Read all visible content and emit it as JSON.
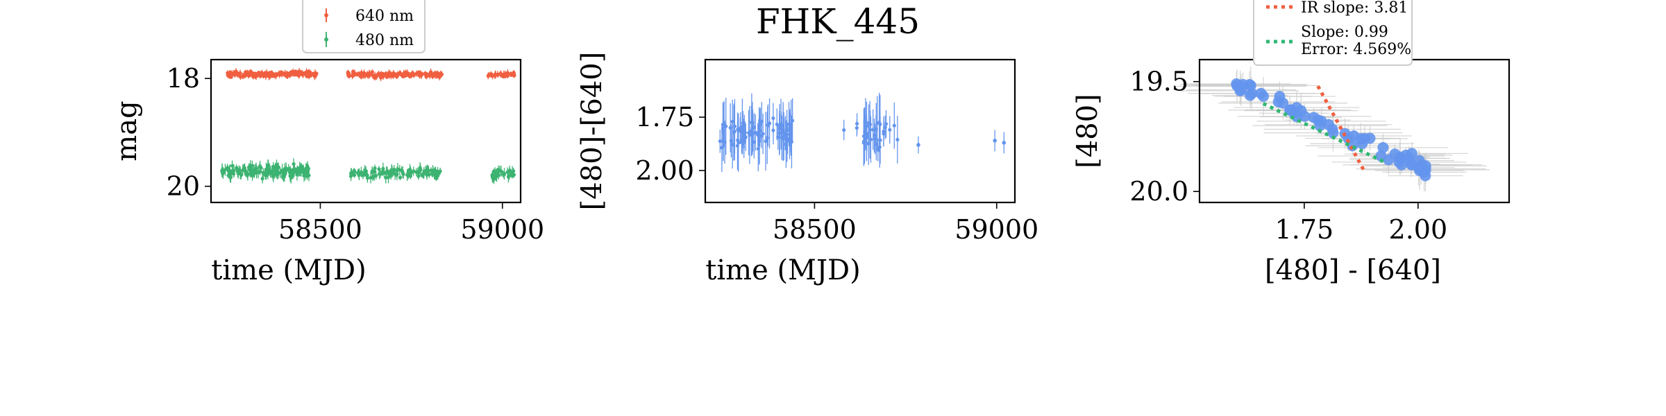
{
  "figure": {
    "title": "FHK_445"
  },
  "colors": {
    "nm640": "#f05f40",
    "nm480": "#3cb371",
    "color_points": "#6495ed",
    "error_gray": "#c8c8c8",
    "ir_slope_line": "#f05f40",
    "fit_line": "#2eb872"
  },
  "chart_data": [
    {
      "type": "scatter",
      "name": "lightcurve",
      "xlabel": "time (MJD)",
      "ylabel": "mag",
      "xlim": [
        58200,
        59050
      ],
      "ylim": [
        20.3,
        17.65
      ],
      "y_inverted": true,
      "xticks": [
        58500,
        59000
      ],
      "yticks": [
        18,
        20
      ],
      "xtick_labels": [
        "58500",
        "59000"
      ],
      "ytick_labels": [
        "18",
        "20"
      ],
      "legend_position": "top-center",
      "series": [
        {
          "name": "640 nm",
          "color_key": "nm640",
          "segments": [
            {
              "x_range": [
                58245,
                58490
              ],
              "y_mean": 17.92,
              "y_jitter": 0.07,
              "err": 0.05,
              "count": 170
            },
            {
              "x_range": [
                58575,
                58835
              ],
              "y_mean": 17.93,
              "y_jitter": 0.07,
              "err": 0.05,
              "count": 140
            },
            {
              "x_range": [
                58960,
                59035
              ],
              "y_mean": 17.93,
              "y_jitter": 0.05,
              "err": 0.05,
              "count": 40
            }
          ]
        },
        {
          "name": "480 nm",
          "color_key": "nm480",
          "segments": [
            {
              "x_range": [
                58230,
                58470
              ],
              "y_mean": 19.72,
              "y_jitter": 0.16,
              "err": 0.09,
              "count": 160
            },
            {
              "x_range": [
                58580,
                58830
              ],
              "y_mean": 19.75,
              "y_jitter": 0.13,
              "err": 0.08,
              "count": 110
            },
            {
              "x_range": [
                58960,
                59035
              ],
              "y_mean": 19.78,
              "y_jitter": 0.14,
              "err": 0.08,
              "count": 30
            }
          ]
        }
      ]
    },
    {
      "type": "scatter",
      "name": "color_curve",
      "title": "FHK_445",
      "xlabel": "time (MJD)",
      "ylabel": "[480]-[640]",
      "xlim": [
        58200,
        59050
      ],
      "ylim": [
        2.15,
        1.48
      ],
      "y_inverted": true,
      "xticks": [
        58500,
        59000
      ],
      "yticks": [
        1.75,
        2.0
      ],
      "xtick_labels": [
        "58500",
        "59000"
      ],
      "ytick_labels": [
        "1.75",
        "2.00"
      ],
      "series": [
        {
          "name": "[480]-[640]",
          "color_key": "color_points",
          "segments": [
            {
              "x_range": [
                58240,
                58440
              ],
              "y_mean": 1.82,
              "y_jitter": 0.09,
              "err": 0.1,
              "count": 90
            },
            {
              "x_range": [
                58570,
                58620
              ],
              "y_mean": 1.8,
              "y_jitter": 0.04,
              "err": 0.06,
              "count": 3
            },
            {
              "x_range": [
                58630,
                58730
              ],
              "y_mean": 1.83,
              "y_jitter": 0.09,
              "err": 0.1,
              "count": 35
            }
          ],
          "points": [
            {
              "x": 58785,
              "y": 1.88,
              "err": 0.04
            },
            {
              "x": 58995,
              "y": 1.86,
              "err": 0.05
            },
            {
              "x": 59020,
              "y": 1.87,
              "err": 0.05
            }
          ]
        }
      ]
    },
    {
      "type": "scatter",
      "name": "color_magnitude",
      "xlabel": "[480] - [640]",
      "ylabel": "[480]",
      "xlim": [
        1.52,
        2.2
      ],
      "ylim": [
        20.05,
        19.4
      ],
      "y_inverted": true,
      "xticks": [
        1.75,
        2.0
      ],
      "yticks": [
        19.5,
        20.0
      ],
      "xtick_labels": [
        "1.75",
        "2.00"
      ],
      "ytick_labels": [
        "19.5",
        "20.0"
      ],
      "legend_position": "top-center",
      "series": [
        {
          "name": "data",
          "color_key": "color_points",
          "trend": {
            "x_range": [
              1.6,
              2.02
            ],
            "y_start": 19.52,
            "y_end": 19.9,
            "y_jitter": 0.05,
            "count": 60
          }
        },
        {
          "name": "IR slope: 3.81",
          "color_key": "ir_slope_line",
          "line": {
            "x": [
              1.78,
              1.88
            ],
            "y": [
              19.52,
              19.9
            ]
          }
        },
        {
          "name": "Slope: 0.99\nError: 4.569%",
          "color_key": "fit_line",
          "line": {
            "x": [
              1.66,
              1.93
            ],
            "y": [
              19.6,
              19.87
            ]
          }
        }
      ],
      "legend": [
        {
          "label": "IR slope: 3.81",
          "color_key": "ir_slope_line"
        },
        {
          "label": "Slope: 0.99",
          "label2": "Error: 4.569%",
          "color_key": "fit_line"
        }
      ]
    }
  ]
}
